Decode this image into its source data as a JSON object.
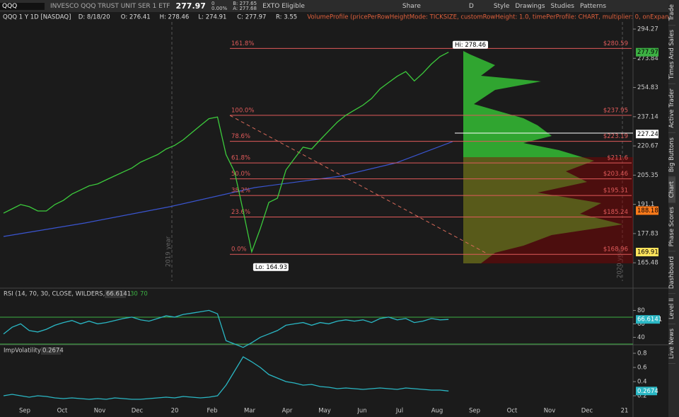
{
  "toolbar": {
    "symbol": "QQQ",
    "description": "INVESCO QQQ TRUST UNIT SER 1 ETF",
    "last": "277.97",
    "change": "0",
    "change_pct": "0.00%",
    "bid": "B: 277.65",
    "ask": "A: 277.68",
    "exto": "EXTO Eligible",
    "share": "Share",
    "period": "D",
    "style": "Style",
    "drawings": "Drawings",
    "studies": "Studies",
    "patterns": "Patterns"
  },
  "header": {
    "title": "QQQ 1 Y 1D [NASDAQ]",
    "date": "D: 8/18/20",
    "open": "O: 276.41",
    "high": "H: 278.46",
    "low": "L: 274.91",
    "close": "C: 277.97",
    "range": "R: 3.55",
    "study": "VolumeProfile (pricePerRowHeightMode: TICKSIZE, customRowHeight: 1.0, timePerProfile: CHART, multiplier: 0, onExpansion: yes, profiles:..."
  },
  "price_chart": {
    "scale": "log",
    "ylim": [
      156,
      300
    ],
    "yticks": [
      294.27,
      273.84,
      254.83,
      237.14,
      220.67,
      205.35,
      191.1,
      177.83,
      165.48
    ],
    "closes": [
      187,
      189,
      191,
      190,
      188,
      188,
      191,
      193,
      196,
      198,
      200,
      201,
      203,
      205,
      207,
      209,
      212,
      214,
      216,
      219,
      221,
      224,
      228,
      232,
      236,
      237,
      216,
      207,
      188,
      170,
      180,
      192,
      194,
      208,
      214,
      220,
      219,
      224,
      229,
      234,
      238,
      241,
      244,
      248,
      254,
      258,
      262,
      265,
      259,
      264,
      270,
      275,
      277.97
    ],
    "fib_levels": [
      {
        "pct": "161.8%",
        "value": 280.59,
        "label": "$280.59"
      },
      {
        "pct": "100.0%",
        "value": 237.95,
        "label": "$237.95"
      },
      {
        "pct": "78.6%",
        "value": 223.19,
        "label": "$223.19"
      },
      {
        "pct": "61.8%",
        "value": 211.6,
        "label": "$211.6"
      },
      {
        "pct": "50.0%",
        "value": 203.46,
        "label": "$203.46"
      },
      {
        "pct": "38.2%",
        "value": 195.31,
        "label": "$195.31"
      },
      {
        "pct": "23.6%",
        "value": 185.24,
        "label": "$185.24"
      },
      {
        "pct": "0.0%",
        "value": 168.96,
        "label": "$168.96"
      }
    ],
    "hi": "Hi: 278.46",
    "lo": "Lo: 164.93",
    "year_2019": "2019 year",
    "year_2020": "2020 year",
    "badges": [
      {
        "value": 277.97,
        "label": "277.97",
        "color": "#3cb043"
      },
      {
        "value": 227.24,
        "label": "227.24",
        "color": "#ffffff"
      },
      {
        "value": 188.18,
        "label": "188.18",
        "color": "#ff7a1a"
      },
      {
        "value": 169.91,
        "label": "169.91",
        "color": "#ffe45c"
      }
    ]
  },
  "rsi": {
    "title": "RSI (14, 70, 30, CLOSE, WILDERS, no)",
    "last": "66.6141",
    "oversold": 30,
    "overbought": 70,
    "ylim": [
      31,
      111
    ],
    "yticks": [
      80,
      60,
      40
    ],
    "values": [
      45,
      55,
      60,
      50,
      48,
      52,
      58,
      62,
      65,
      60,
      64,
      60,
      62,
      65,
      68,
      70,
      66,
      64,
      68,
      72,
      70,
      74,
      76,
      78,
      80,
      75,
      35,
      30,
      25,
      32,
      40,
      45,
      50,
      58,
      60,
      62,
      58,
      62,
      60,
      64,
      66,
      64,
      66,
      62,
      68,
      70,
      66,
      68,
      62,
      64,
      68,
      66,
      66.6141
    ]
  },
  "iv": {
    "title": "ImpVolatility",
    "last": "0.2674",
    "ylim": [
      0.1,
      0.9
    ],
    "yticks": [
      0.8,
      0.6,
      0.4,
      0.2
    ],
    "values": [
      0.2,
      0.22,
      0.2,
      0.18,
      0.2,
      0.19,
      0.17,
      0.16,
      0.17,
      0.16,
      0.15,
      0.16,
      0.15,
      0.17,
      0.16,
      0.15,
      0.15,
      0.16,
      0.17,
      0.18,
      0.17,
      0.19,
      0.18,
      0.17,
      0.18,
      0.2,
      0.35,
      0.55,
      0.75,
      0.68,
      0.6,
      0.5,
      0.45,
      0.4,
      0.38,
      0.35,
      0.36,
      0.33,
      0.32,
      0.3,
      0.31,
      0.3,
      0.29,
      0.3,
      0.31,
      0.3,
      0.29,
      0.31,
      0.3,
      0.29,
      0.28,
      0.28,
      0.2674
    ]
  },
  "months": [
    "Sep",
    "Oct",
    "Nov",
    "Dec",
    "20",
    "Feb",
    "Mar",
    "Apr",
    "May",
    "Jun",
    "Jul",
    "Aug",
    "Sep",
    "Oct",
    "Nov",
    "Dec",
    "21"
  ],
  "side_tabs": [
    "Trade",
    "Times And Sales",
    "Active Trader",
    "Big Buttons",
    "Chart",
    "Phase Scores",
    "Dashboard",
    "Level II",
    "Live News"
  ]
}
